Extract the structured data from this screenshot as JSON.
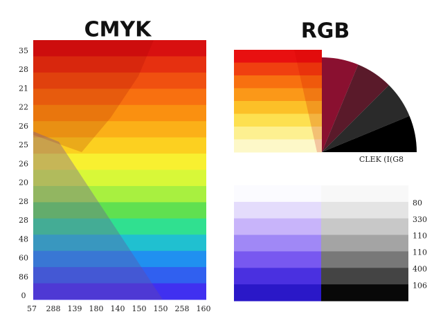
{
  "title_left": "CMYK",
  "title_right": "RGB",
  "left_y_labels": [
    "35",
    "28",
    "21",
    "22",
    "26",
    "25",
    "26",
    "20",
    "28",
    "28",
    "48",
    "60",
    "86",
    "0"
  ],
  "left_x_labels": [
    "57",
    "288",
    "139",
    "180",
    "140",
    "150",
    "150",
    "258",
    "160"
  ],
  "right_caption": "CLEK (I(G8",
  "right_labels": [
    "80",
    "330",
    "110",
    "110",
    "400",
    "106"
  ]
}
